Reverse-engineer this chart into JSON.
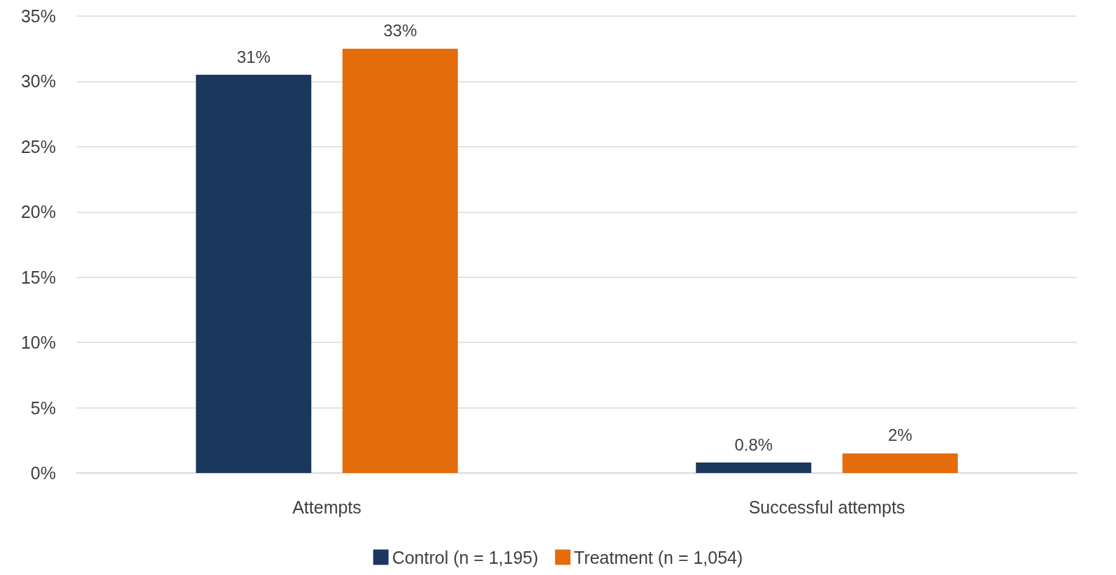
{
  "chart_data": {
    "type": "bar",
    "categories": [
      "Attempts",
      "Successful attempts"
    ],
    "series": [
      {
        "name": "Control (n = 1,195)",
        "color": "#1b375d",
        "values": [
          30.5,
          0.8
        ],
        "value_labels": [
          "31%",
          "0.8%"
        ]
      },
      {
        "name": "Treatment (n = 1,054)",
        "color": "#e46c0a",
        "values": [
          32.5,
          1.5
        ],
        "value_labels": [
          "33%",
          "2%"
        ]
      }
    ],
    "ylim": [
      0,
      35
    ],
    "yticks": [
      {
        "value": 0,
        "label": "0%"
      },
      {
        "value": 5,
        "label": "5%"
      },
      {
        "value": 10,
        "label": "10%"
      },
      {
        "value": 15,
        "label": "15%"
      },
      {
        "value": 20,
        "label": "20%"
      },
      {
        "value": 25,
        "label": "25%"
      },
      {
        "value": 30,
        "label": "30%"
      },
      {
        "value": 35,
        "label": "35%"
      }
    ],
    "grid": "y",
    "legend": "bottom"
  }
}
